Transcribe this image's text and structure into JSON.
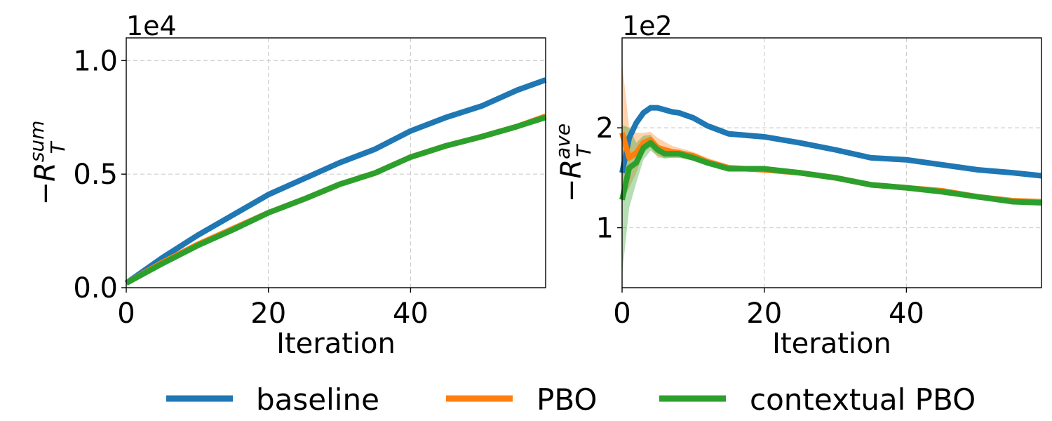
{
  "colors": {
    "baseline": "#1f77b4",
    "PBO": "#ff7f0e",
    "contextual_PBO": "#2ca02c",
    "grid": "#cfcfcf"
  },
  "legend": {
    "placement": "bottom-center",
    "items": [
      {
        "label": "baseline",
        "color": "#1f77b4"
      },
      {
        "label": "PBO",
        "color": "#ff7f0e"
      },
      {
        "label": "contextual PBO",
        "color": "#2ca02c"
      }
    ]
  },
  "chart_data": [
    {
      "type": "line",
      "xlabel": "Iteration",
      "ylabel_base": "−R",
      "ylabel_sup": "sum",
      "ylabel_sub": "T",
      "offset_text": "1e4",
      "xlim": [
        0,
        59
      ],
      "ylim": [
        0,
        1.1
      ],
      "xticks": [
        0,
        20,
        40
      ],
      "xtick_labels": [
        "0",
        "20",
        "40"
      ],
      "yticks": [
        0.0,
        0.5,
        1.0
      ],
      "ytick_labels": [
        "0.0",
        "0.5",
        "1.0"
      ],
      "grid": true,
      "x": [
        0,
        5,
        10,
        15,
        20,
        25,
        30,
        35,
        40,
        45,
        50,
        55,
        59
      ],
      "series": [
        {
          "name": "baseline",
          "color": "#1f77b4",
          "values": [
            0.02,
            0.13,
            0.23,
            0.32,
            0.41,
            0.48,
            0.55,
            0.61,
            0.69,
            0.75,
            0.8,
            0.87,
            0.915
          ]
        },
        {
          "name": "PBO",
          "color": "#ff7f0e",
          "values": [
            0.02,
            0.11,
            0.19,
            0.26,
            0.33,
            0.39,
            0.455,
            0.505,
            0.575,
            0.625,
            0.665,
            0.71,
            0.755
          ]
        },
        {
          "name": "contextual PBO",
          "color": "#2ca02c",
          "values": [
            0.02,
            0.105,
            0.185,
            0.255,
            0.33,
            0.39,
            0.455,
            0.505,
            0.575,
            0.625,
            0.665,
            0.71,
            0.75
          ]
        }
      ]
    },
    {
      "type": "line",
      "xlabel": "Iteration",
      "ylabel_base": "−R",
      "ylabel_sup": "ave",
      "ylabel_sub": "T",
      "offset_text": "1e2",
      "xlim": [
        0,
        59
      ],
      "ylim": [
        0.4,
        2.9
      ],
      "xticks": [
        0,
        20,
        40
      ],
      "xtick_labels": [
        "0",
        "20",
        "40"
      ],
      "yticks": [
        1,
        2
      ],
      "ytick_labels": [
        "1",
        "2"
      ],
      "grid": true,
      "x": [
        0,
        1,
        2,
        3,
        4,
        5,
        6,
        7,
        8,
        10,
        12,
        15,
        20,
        25,
        30,
        35,
        40,
        45,
        50,
        55,
        59
      ],
      "series": [
        {
          "name": "baseline",
          "color": "#1f77b4",
          "values": [
            1.55,
            1.9,
            2.05,
            2.15,
            2.2,
            2.2,
            2.18,
            2.16,
            2.15,
            2.1,
            2.02,
            1.94,
            1.91,
            1.85,
            1.78,
            1.7,
            1.68,
            1.63,
            1.58,
            1.55,
            1.52
          ],
          "band": [
            0,
            0,
            0,
            0,
            0,
            0,
            0,
            0,
            0,
            0,
            0,
            0,
            0,
            0,
            0,
            0,
            0,
            0,
            0,
            0,
            0
          ]
        },
        {
          "name": "PBO",
          "color": "#ff7f0e",
          "values": [
            1.95,
            1.7,
            1.75,
            1.85,
            1.88,
            1.8,
            1.78,
            1.76,
            1.75,
            1.72,
            1.66,
            1.6,
            1.58,
            1.55,
            1.5,
            1.43,
            1.4,
            1.37,
            1.31,
            1.27,
            1.26
          ],
          "band": [
            0.7,
            0.3,
            0.2,
            0.1,
            0.08,
            0.1,
            0.08,
            0.06,
            0.05,
            0.04,
            0.04,
            0.03,
            0.02,
            0.02,
            0.02,
            0.02,
            0.02,
            0.02,
            0.01,
            0.01,
            0.01
          ]
        },
        {
          "name": "contextual PBO",
          "color": "#2ca02c",
          "values": [
            1.28,
            1.6,
            1.65,
            1.8,
            1.85,
            1.78,
            1.74,
            1.74,
            1.74,
            1.7,
            1.65,
            1.59,
            1.59,
            1.55,
            1.5,
            1.43,
            1.4,
            1.36,
            1.31,
            1.26,
            1.25
          ],
          "band": [
            0.75,
            0.4,
            0.2,
            0.12,
            0.08,
            0.06,
            0.05,
            0.04,
            0.04,
            0.03,
            0.03,
            0.02,
            0.02,
            0.02,
            0.02,
            0.02,
            0.02,
            0.02,
            0.01,
            0.01,
            0.01
          ]
        }
      ]
    }
  ]
}
